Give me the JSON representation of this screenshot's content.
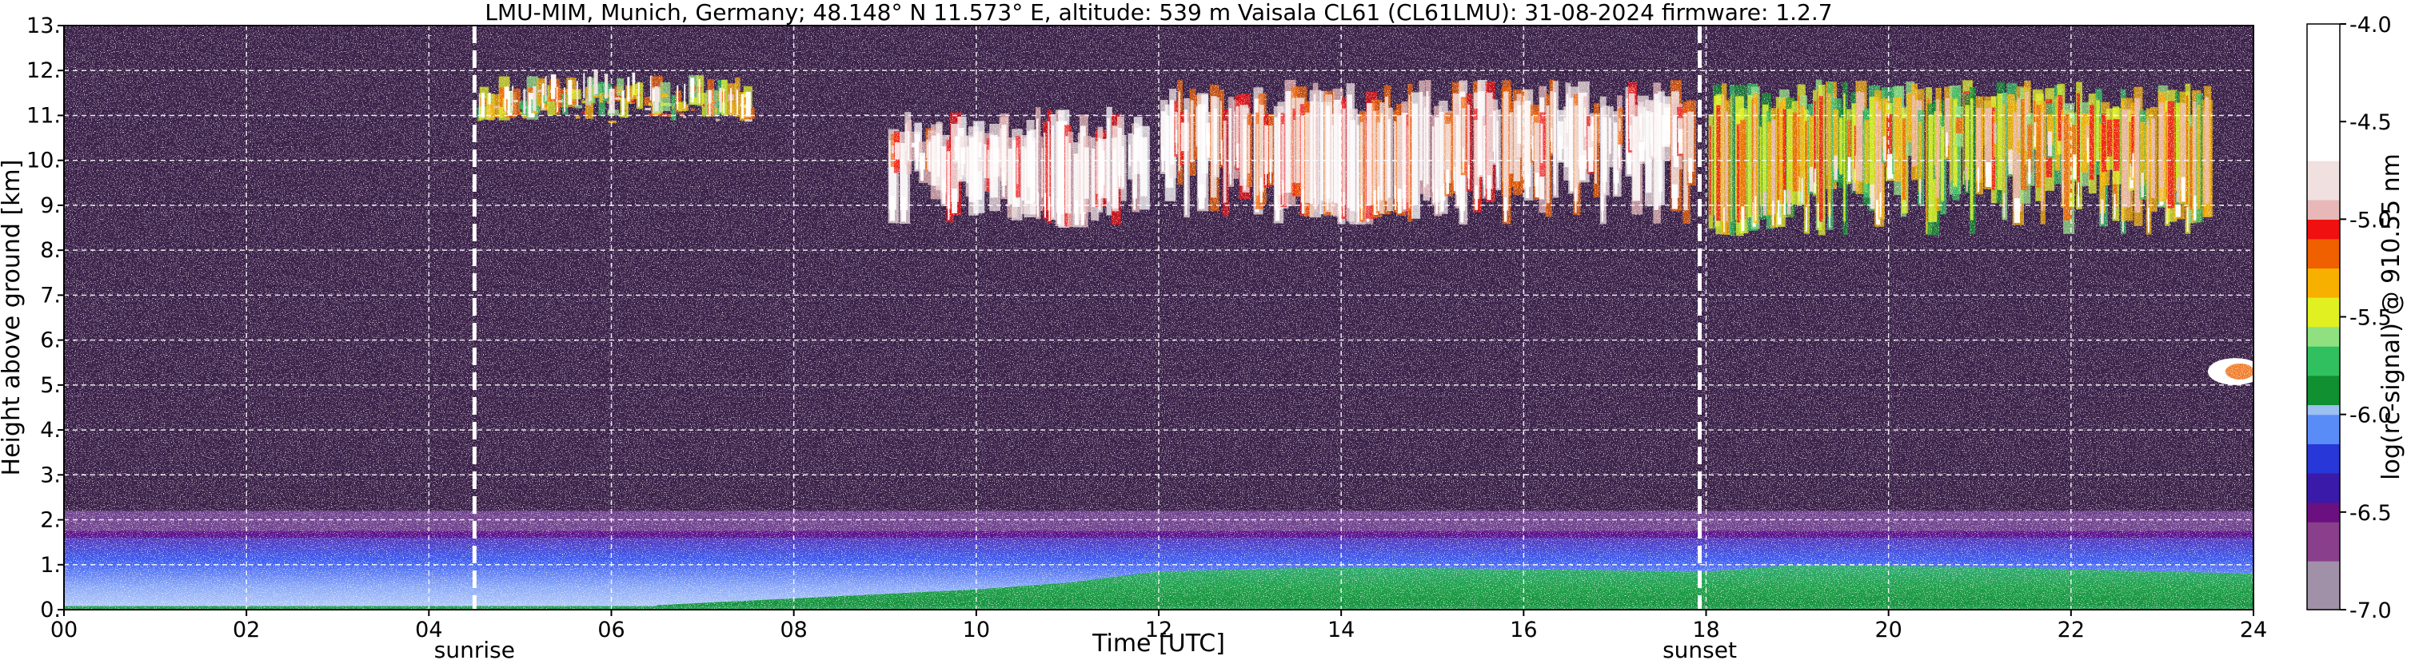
{
  "chart_data": {
    "type": "heatmap",
    "title": "LMU-MIM, Munich, Germany; 48.148° N 11.573° E, altitude: 539 m    Vaisala CL61 (CL61LMU): 31-08-2024    firmware: 1.2.7",
    "xlabel": "Time [UTC]",
    "ylabel": "Height above ground [km]",
    "xlim": [
      0,
      24
    ],
    "ylim": [
      0,
      13
    ],
    "x_ticks": [
      {
        "value": 0,
        "label": "00"
      },
      {
        "value": 2,
        "label": "02"
      },
      {
        "value": 4,
        "label": "04"
      },
      {
        "value": 6,
        "label": "06"
      },
      {
        "value": 8,
        "label": "08"
      },
      {
        "value": 10,
        "label": "10"
      },
      {
        "value": 12,
        "label": "12"
      },
      {
        "value": 14,
        "label": "14"
      },
      {
        "value": 16,
        "label": "16"
      },
      {
        "value": 18,
        "label": "18"
      },
      {
        "value": 20,
        "label": "20"
      },
      {
        "value": 22,
        "label": "22"
      },
      {
        "value": 24,
        "label": "24"
      }
    ],
    "y_ticks": [
      {
        "value": 0,
        "label": "0."
      },
      {
        "value": 1,
        "label": "1."
      },
      {
        "value": 2,
        "label": "2."
      },
      {
        "value": 3,
        "label": "3."
      },
      {
        "value": 4,
        "label": "4."
      },
      {
        "value": 5,
        "label": "5."
      },
      {
        "value": 6,
        "label": "6."
      },
      {
        "value": 7,
        "label": "7."
      },
      {
        "value": 8,
        "label": "8."
      },
      {
        "value": 9,
        "label": "9."
      },
      {
        "value": 10,
        "label": "10."
      },
      {
        "value": 11,
        "label": "11."
      },
      {
        "value": 12,
        "label": "12."
      },
      {
        "value": 13,
        "label": "13."
      }
    ],
    "grid": true,
    "events": [
      {
        "name": "sunrise",
        "time": 4.5
      },
      {
        "name": "sunset",
        "time": 17.93
      }
    ],
    "colorbar": {
      "label": "log(rc-signal) @ 910.55 nm",
      "range": [
        -7.0,
        -4.0
      ],
      "ticks": [
        {
          "value": -7.0,
          "label": "-7.0"
        },
        {
          "value": -6.5,
          "label": "-6.5"
        },
        {
          "value": -6.0,
          "label": "-6.0"
        },
        {
          "value": -5.5,
          "label": "-5.5"
        },
        {
          "value": -5.0,
          "label": "-5.0"
        },
        {
          "value": -4.5,
          "label": "-4.5"
        },
        {
          "value": -4.0,
          "label": "-4.0"
        }
      ],
      "color_stops": [
        {
          "value": -7.0,
          "color": "#a090a8"
        },
        {
          "value": -6.75,
          "color": "#8a3f8c"
        },
        {
          "value": -6.55,
          "color": "#6a1080"
        },
        {
          "value": -6.45,
          "color": "#3a1aa8"
        },
        {
          "value": -6.3,
          "color": "#2838d8"
        },
        {
          "value": -6.15,
          "color": "#5a8cf8"
        },
        {
          "value": -6.02,
          "color": "#9cc0f0"
        },
        {
          "value": -5.95,
          "color": "#109030"
        },
        {
          "value": -5.8,
          "color": "#30c060"
        },
        {
          "value": -5.65,
          "color": "#90e080"
        },
        {
          "value": -5.55,
          "color": "#e0f020"
        },
        {
          "value": -5.4,
          "color": "#f8b000"
        },
        {
          "value": -5.25,
          "color": "#f06000"
        },
        {
          "value": -5.12,
          "color": "#f01010"
        },
        {
          "value": -5.02,
          "color": "#e8b8b8"
        },
        {
          "value": -4.9,
          "color": "#f0e0e0"
        },
        {
          "value": -4.7,
          "color": "#ffffff"
        },
        {
          "value": -4.0,
          "color": "#ffffff"
        }
      ]
    },
    "features": [
      {
        "name": "noise background",
        "time_range": [
          0,
          24
        ],
        "height_range_km": [
          2.2,
          13
        ],
        "signal": -6.8
      },
      {
        "name": "boundary layer top",
        "time_range": [
          0,
          24
        ],
        "height_range_km": [
          1.6,
          2.2
        ],
        "signal": -6.6
      },
      {
        "name": "boundary layer aerosol",
        "time_range": [
          0,
          24
        ],
        "height_range_km": [
          0,
          1.7
        ],
        "signal": -6.15
      },
      {
        "name": "near-surface aerosol",
        "time_range": [
          6.5,
          24
        ],
        "height_range_km": [
          0,
          1.0
        ],
        "signal": -5.9
      },
      {
        "name": "cirrus 05-07 UTC",
        "time_range": [
          4.5,
          7.5
        ],
        "height_range_km": [
          10.7,
          11.9
        ],
        "signal": -5.2
      },
      {
        "name": "cirrus 09-12 UTC",
        "time_range": [
          9.0,
          11.8
        ],
        "height_range_km": [
          8.0,
          11.2
        ],
        "signal": -4.6
      },
      {
        "name": "cirrus 12-18 UTC",
        "time_range": [
          12.0,
          17.8
        ],
        "height_range_km": [
          8.0,
          11.8
        ],
        "signal": -4.7
      },
      {
        "name": "cirrus 18-23.5 UTC",
        "time_range": [
          18.0,
          23.5
        ],
        "height_range_km": [
          7.7,
          11.8
        ],
        "signal": -5.3
      },
      {
        "name": "mid-level cloud",
        "time_range": [
          23.4,
          24.0
        ],
        "height_range_km": [
          5.0,
          5.6
        ],
        "signal": -4.5
      }
    ]
  }
}
